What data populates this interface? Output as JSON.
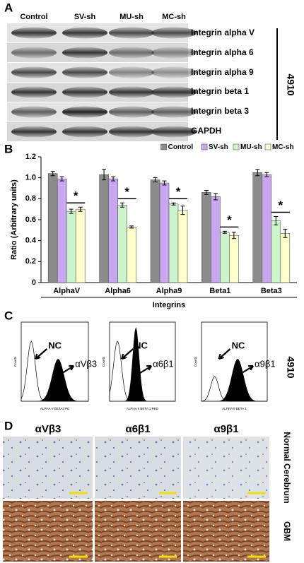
{
  "panel_a": {
    "letter": "A",
    "lanes": [
      "Control",
      "SV-sh",
      "MU-sh",
      "MC-sh"
    ],
    "proteins": [
      "Integrin alpha V",
      "Integrin alpha 6",
      "Integrin alpha 9",
      "Integrin beta 1",
      "Integrin beta 3",
      "GAPDH"
    ],
    "cell_line": "4910"
  },
  "panel_b": {
    "letter": "B"
  },
  "chart_data": {
    "type": "bar",
    "y_label": "Ratio (Arbitrary units)",
    "x_label": "Integrins",
    "categories": [
      "AlphaV",
      "Alpha6",
      "Alpha9",
      "Beta1",
      "Beta3"
    ],
    "series": [
      {
        "name": "Control",
        "color": "#8c8c8c",
        "values": [
          1.04,
          1.03,
          0.98,
          0.86,
          1.05
        ],
        "errors": [
          0.02,
          0.05,
          0.02,
          0.02,
          0.03
        ]
      },
      {
        "name": "SV-sh",
        "color": "#c9a6f0",
        "values": [
          0.99,
          0.99,
          0.95,
          0.82,
          1.03
        ],
        "errors": [
          0.02,
          0.02,
          0.02,
          0.03,
          0.02
        ]
      },
      {
        "name": "MU-sh",
        "color": "#ccf5cc",
        "values": [
          0.68,
          0.74,
          0.75,
          0.48,
          0.59
        ],
        "errors": [
          0.02,
          0.02,
          0.01,
          0.01,
          0.04
        ]
      },
      {
        "name": "MC-sh",
        "color": "#ffffcc",
        "values": [
          0.7,
          0.53,
          0.69,
          0.45,
          0.47
        ],
        "errors": [
          0.02,
          0.01,
          0.04,
          0.03,
          0.04
        ]
      }
    ],
    "annotations": [
      "*",
      "*",
      "*",
      "*",
      "*"
    ],
    "ylim": [
      0,
      1.2
    ],
    "yticks": [
      0,
      0.2,
      0.4,
      0.6,
      0.8,
      {
        "value": 1,
        "label": "1.0"
      },
      1.2
    ],
    "legend": "top-right"
  },
  "panel_c": {
    "letter": "C",
    "cell_line": "4910",
    "plots": [
      {
        "control": "NC",
        "marker": "αVβ3",
        "x_axis": "ALPHA V BETA3 PE",
        "y_axis": "Counts"
      },
      {
        "control": "NC",
        "marker": "α6β1",
        "x_axis": "ALPHA 6 BETA 1 RED",
        "y_axis": "Counts"
      },
      {
        "control": "NC",
        "marker": "α9β1",
        "x_axis": "ALPHA 9 BETA 1",
        "y_axis": "Counts"
      }
    ]
  },
  "panel_d": {
    "letter": "D",
    "columns": [
      "αVβ3",
      "α6β1",
      "α9β1"
    ],
    "rows": [
      "Normal Cerebrum",
      "GBM"
    ]
  }
}
